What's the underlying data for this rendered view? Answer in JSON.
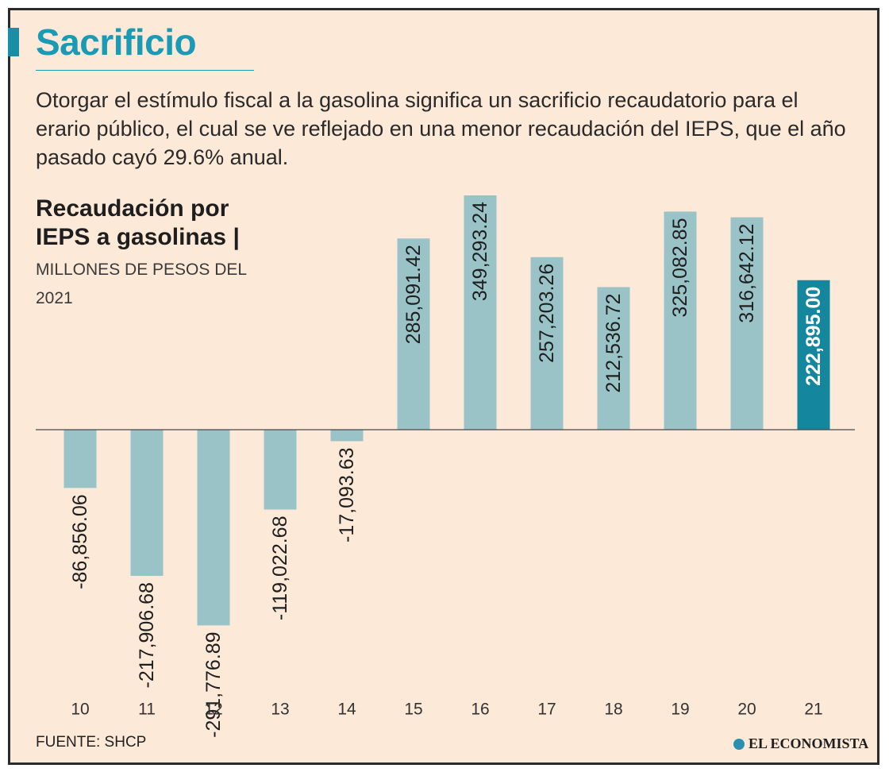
{
  "header": {
    "title": "Sacrificio",
    "description": "Otorgar el estímulo fiscal a la gasolina significa un sacrificio recaudatorio para el erario público, el cual se ve reflejado en una menor recaudación del IEPS, que el año pasado cayó 29.6% anual."
  },
  "chart_heading": {
    "title_line1": "Recaudación por",
    "title_line2": "IEPS a gasolinas |",
    "units": "MILLONES DE PESOS DEL 2021"
  },
  "footer": {
    "source": "FUENTE: SHCP",
    "brand": "EL ECONOMISTA"
  },
  "colors": {
    "bar": "#9ac3c8",
    "highlight": "#14879e",
    "axis": "#4a4a4a",
    "label": "#1e1e1e",
    "highlight_label": "#ffffff"
  },
  "chart_data": {
    "type": "bar",
    "title": "Recaudación por IEPS a gasolinas",
    "ylabel": "Millones de pesos del 2021",
    "xlabel": "",
    "categories": [
      "10",
      "11",
      "12",
      "13",
      "14",
      "15",
      "16",
      "17",
      "18",
      "19",
      "20",
      "21"
    ],
    "values": [
      -86856.06,
      -217906.68,
      -291776.89,
      -119022.68,
      -17093.63,
      285091.42,
      349293.24,
      257203.26,
      212536.72,
      325082.85,
      316642.12,
      222895.0
    ],
    "labels": [
      "-86,856.06",
      "-217,906.68",
      "-291,776.89",
      "-119,022.68",
      "-17,093.63",
      "285,091.42",
      "349,293.24",
      "257,203.26",
      "212,536.72",
      "325,082.85",
      "316,642.12",
      "222,895.00"
    ],
    "highlight_index": 11,
    "ylim": [
      -300000,
      360000
    ],
    "grid": false
  }
}
